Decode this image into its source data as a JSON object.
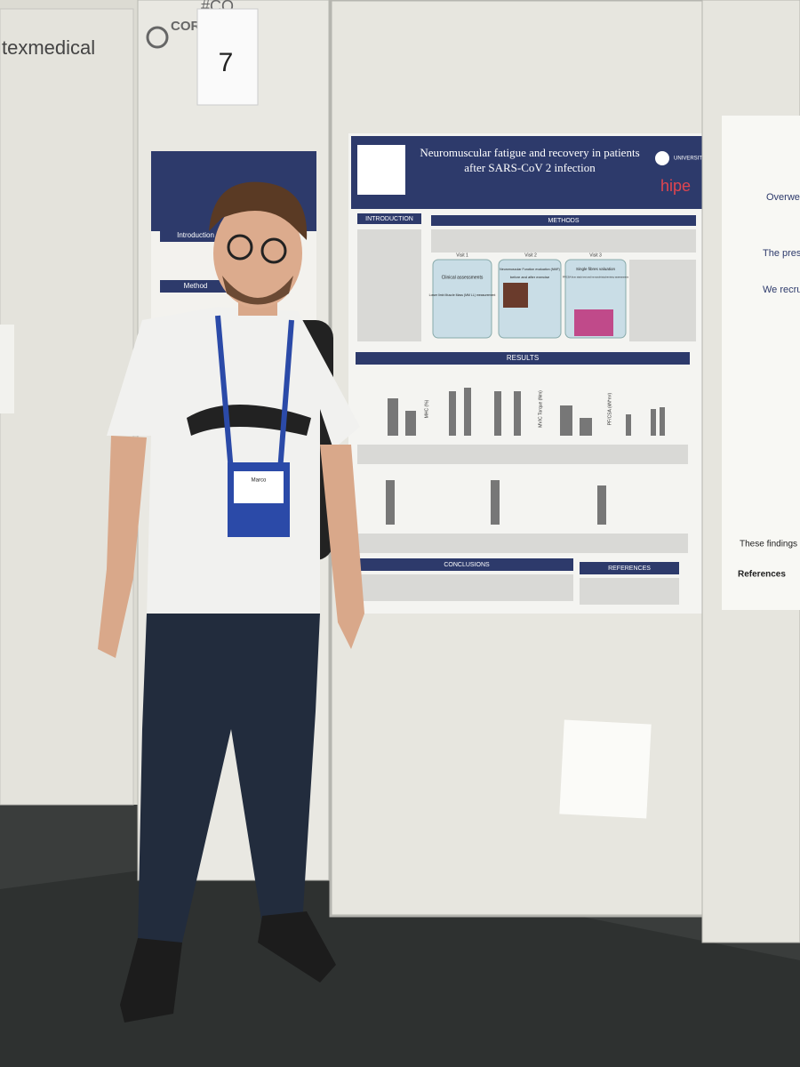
{
  "left_panel": {
    "brand": "texmedical"
  },
  "middle_panel": {
    "brand": "CORTEX",
    "hashtag": "#CO",
    "board_sign": "7",
    "poster_sections": [
      "Introduction",
      "Method"
    ]
  },
  "poster": {
    "title_line1": "Neuromuscular fatigue and recovery in patients",
    "title_line2": "after SARS-CoV 2 infection",
    "university": "UNIVERSITÀ DI PAVIA",
    "lab": "hipe",
    "sections": {
      "introduction": "INTRODUCTION",
      "methods": "METHODS",
      "results": "RESULTS",
      "conclusions": "CONCLUSIONS",
      "references": "REFERENCES"
    },
    "visits": [
      {
        "label": "Visit 1",
        "box": "Clinical assessments",
        "detail": "Lower limb Muscle Mass (MM LL) measurement"
      },
      {
        "label": "Visit 2",
        "box": "Neuromuscular Function evaluation (NMF)",
        "detail": "before and after exercise"
      },
      {
        "label": "Visit 3",
        "box": "Single fibres valuation",
        "detail": "PF/CSA from stack test and immunohistochemistry assessments"
      }
    ],
    "chart_axes": [
      "MHC (%)",
      "MVIC Torque (Nm)",
      "PF/CSA (kN*m²)"
    ]
  },
  "badge": {
    "name": "Marco"
  },
  "right_panel": {
    "lines": [
      "Overweight",
      "The present",
      "We recruited",
      "These findings show",
      "References"
    ]
  }
}
